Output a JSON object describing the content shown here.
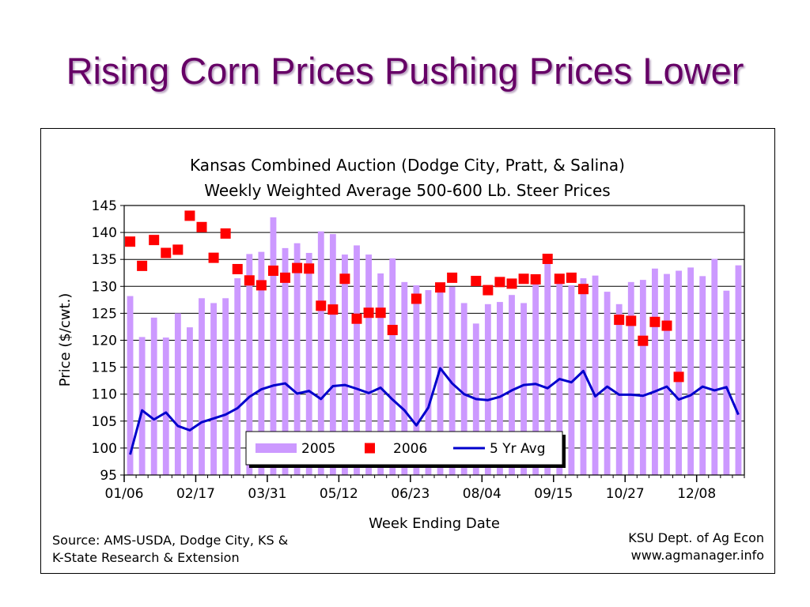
{
  "slide": {
    "title": "Rising Corn Prices Pushing Prices Lower"
  },
  "chart_data": {
    "type": "bar",
    "title": "Kansas Combined Auction (Dodge City, Pratt, & Salina)",
    "subtitle": "Weekly Weighted Average 500-600 Lb. Steer Prices",
    "xlabel": "Week Ending Date",
    "ylabel": "Price ($/cwt.)",
    "ylim": [
      95,
      145
    ],
    "yticks": [
      95,
      100,
      105,
      110,
      115,
      120,
      125,
      130,
      135,
      140,
      145
    ],
    "xtick_labels": [
      "01/06",
      "02/17",
      "03/31",
      "05/12",
      "06/23",
      "08/04",
      "09/15",
      "10/27",
      "12/08"
    ],
    "xtick_weeks": [
      1,
      7,
      13,
      19,
      25,
      31,
      37,
      43,
      49
    ],
    "grid": "horizontal",
    "legend_position": "bottom-center",
    "colors": {
      "2005": "#cc99ff",
      "2006": "#ff0000",
      "5 Yr Avg": "#0000cc"
    },
    "series": [
      {
        "name": "2005",
        "type": "bar",
        "values": [
          128.2,
          120.6,
          124.2,
          120.5,
          125,
          122.4,
          127.8,
          126.9,
          127.8,
          131.5,
          136,
          136.4,
          142.8,
          137.1,
          138,
          136.2,
          140.2,
          139.7,
          135.9,
          137.6,
          135.9,
          132.4,
          135.2,
          130.8,
          130.2,
          129.3,
          130.1,
          129.9,
          126.9,
          123.1,
          126.7,
          127.1,
          128.4,
          126.9,
          131.3,
          135.5,
          131.5,
          130.2,
          131.5,
          132,
          129,
          126.7,
          130.8,
          131.2,
          133.3,
          132.3,
          132.9,
          133.5,
          131.9,
          135.1,
          129.2,
          133.9
        ]
      },
      {
        "name": "2006",
        "type": "scatter",
        "points": [
          [
            1,
            138.3
          ],
          [
            2,
            133.8
          ],
          [
            3,
            138.6
          ],
          [
            4,
            136.2
          ],
          [
            5,
            136.8
          ],
          [
            6,
            143.1
          ],
          [
            7,
            141
          ],
          [
            8,
            135.3
          ],
          [
            9,
            139.8
          ],
          [
            10,
            133.2
          ],
          [
            11,
            131.1
          ],
          [
            12,
            130.2
          ],
          [
            13,
            132.9
          ],
          [
            14,
            131.6
          ],
          [
            15,
            133.4
          ],
          [
            16,
            133.3
          ],
          [
            17,
            126.4
          ],
          [
            18,
            125.7
          ],
          [
            19,
            131.4
          ],
          [
            20,
            124
          ],
          [
            21,
            125.1
          ],
          [
            22,
            125.1
          ],
          [
            23,
            121.9
          ],
          [
            25,
            127.7
          ],
          [
            27,
            129.8
          ],
          [
            28,
            131.6
          ],
          [
            30,
            131
          ],
          [
            31,
            129.3
          ],
          [
            32,
            130.8
          ],
          [
            33,
            130.5
          ],
          [
            34,
            131.4
          ],
          [
            35,
            131.3
          ],
          [
            36,
            135.1
          ],
          [
            37,
            131.4
          ],
          [
            38,
            131.6
          ],
          [
            39,
            129.5
          ],
          [
            42,
            123.8
          ],
          [
            43,
            123.6
          ],
          [
            44,
            119.9
          ],
          [
            45,
            123.4
          ],
          [
            46,
            122.7
          ],
          [
            47,
            113.2
          ]
        ]
      },
      {
        "name": "5 Yr Avg",
        "type": "line",
        "values": [
          98.8,
          107,
          105.3,
          106.6,
          104.1,
          103.3,
          104.8,
          105.5,
          106.2,
          107.4,
          109.5,
          110.9,
          111.6,
          112,
          110.1,
          110.6,
          109.1,
          111.5,
          111.7,
          111,
          110.2,
          111.2,
          109,
          107,
          104.2,
          107.5,
          114.8,
          112,
          110,
          109.1,
          108.9,
          109.5,
          110.7,
          111.7,
          111.9,
          111.1,
          112.8,
          112.2,
          114.3,
          109.6,
          111.4,
          109.9,
          109.9,
          109.7,
          110.5,
          111.4,
          109,
          109.8,
          111.4,
          110.7,
          111.3,
          106.2
        ]
      }
    ]
  },
  "source": {
    "left_line1": "Source:  AMS-USDA, Dodge City, KS &",
    "left_line2": "K-State Research & Extension",
    "right_line1": "KSU Dept. of Ag Econ",
    "right_line2": "www.agmanager.info"
  }
}
